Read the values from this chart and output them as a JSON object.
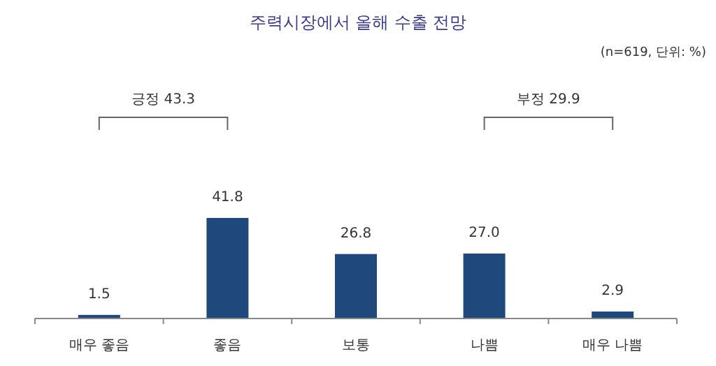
{
  "chart_data": {
    "type": "bar",
    "title": "주력시장에서 올해 수출 전망",
    "subtitle": "(n=619, 단위: %)",
    "categories": [
      "매우 좋음",
      "좋음",
      "보통",
      "나쁨",
      "매우 나쁨"
    ],
    "values": [
      1.5,
      41.8,
      26.8,
      27.0,
      2.9
    ],
    "value_labels": [
      "1.5",
      "41.8",
      "26.8",
      "27.0",
      "2.9"
    ],
    "color": "#1f497d",
    "annotations": [
      "긍정 43.3",
      "부정 29.9"
    ]
  }
}
